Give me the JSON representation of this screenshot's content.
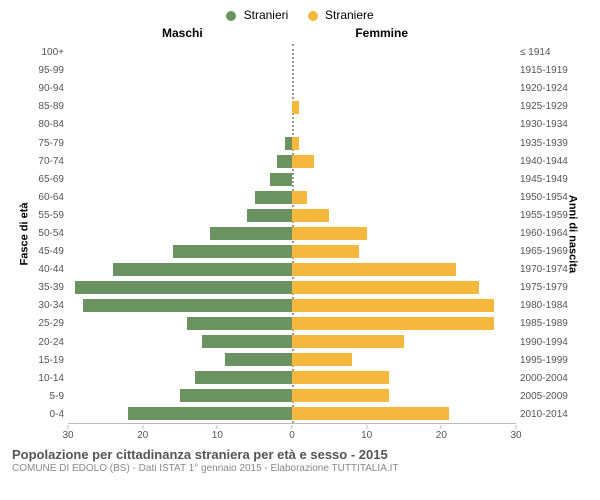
{
  "chart": {
    "type": "population-pyramid",
    "legend": {
      "male": {
        "label": "Stranieri",
        "color": "#6b9362"
      },
      "female": {
        "label": "Straniere",
        "color": "#f5b83d"
      }
    },
    "headers": {
      "left": "Maschi",
      "right": "Femmine"
    },
    "y_left_label": "Fasce di età",
    "y_right_label": "Anni di nascita",
    "background_color": "#ffffff",
    "divider_color": "#999999",
    "bar_fill_opacity": 1.0,
    "x_axis": {
      "max": 30,
      "ticks_left": [
        30,
        20,
        10,
        0
      ],
      "ticks_right": [
        0,
        10,
        20,
        30
      ]
    },
    "rows": [
      {
        "age": "100+",
        "birth": "≤ 1914",
        "m": 0,
        "f": 0
      },
      {
        "age": "95-99",
        "birth": "1915-1919",
        "m": 0,
        "f": 0
      },
      {
        "age": "90-94",
        "birth": "1920-1924",
        "m": 0,
        "f": 0
      },
      {
        "age": "85-89",
        "birth": "1925-1929",
        "m": 0,
        "f": 1
      },
      {
        "age": "80-84",
        "birth": "1930-1934",
        "m": 0,
        "f": 0
      },
      {
        "age": "75-79",
        "birth": "1935-1939",
        "m": 1,
        "f": 1
      },
      {
        "age": "70-74",
        "birth": "1940-1944",
        "m": 2,
        "f": 3
      },
      {
        "age": "65-69",
        "birth": "1945-1949",
        "m": 3,
        "f": 0
      },
      {
        "age": "60-64",
        "birth": "1950-1954",
        "m": 5,
        "f": 2
      },
      {
        "age": "55-59",
        "birth": "1955-1959",
        "m": 6,
        "f": 5
      },
      {
        "age": "50-54",
        "birth": "1960-1964",
        "m": 11,
        "f": 10
      },
      {
        "age": "45-49",
        "birth": "1965-1969",
        "m": 16,
        "f": 9
      },
      {
        "age": "40-44",
        "birth": "1970-1974",
        "m": 24,
        "f": 22
      },
      {
        "age": "35-39",
        "birth": "1975-1979",
        "m": 29,
        "f": 25
      },
      {
        "age": "30-34",
        "birth": "1980-1984",
        "m": 28,
        "f": 27
      },
      {
        "age": "25-29",
        "birth": "1985-1989",
        "m": 14,
        "f": 27
      },
      {
        "age": "20-24",
        "birth": "1990-1994",
        "m": 12,
        "f": 15
      },
      {
        "age": "15-19",
        "birth": "1995-1999",
        "m": 9,
        "f": 8
      },
      {
        "age": "10-14",
        "birth": "2000-2004",
        "m": 13,
        "f": 13
      },
      {
        "age": "5-9",
        "birth": "2005-2009",
        "m": 15,
        "f": 13
      },
      {
        "age": "0-4",
        "birth": "2010-2014",
        "m": 22,
        "f": 21
      }
    ]
  },
  "footer": {
    "title": "Popolazione per cittadinanza straniera per età e sesso - 2015",
    "subtitle": "COMUNE DI EDOLO (BS) - Dati ISTAT 1° gennaio 2015 - Elaborazione TUTTITALIA.IT"
  }
}
